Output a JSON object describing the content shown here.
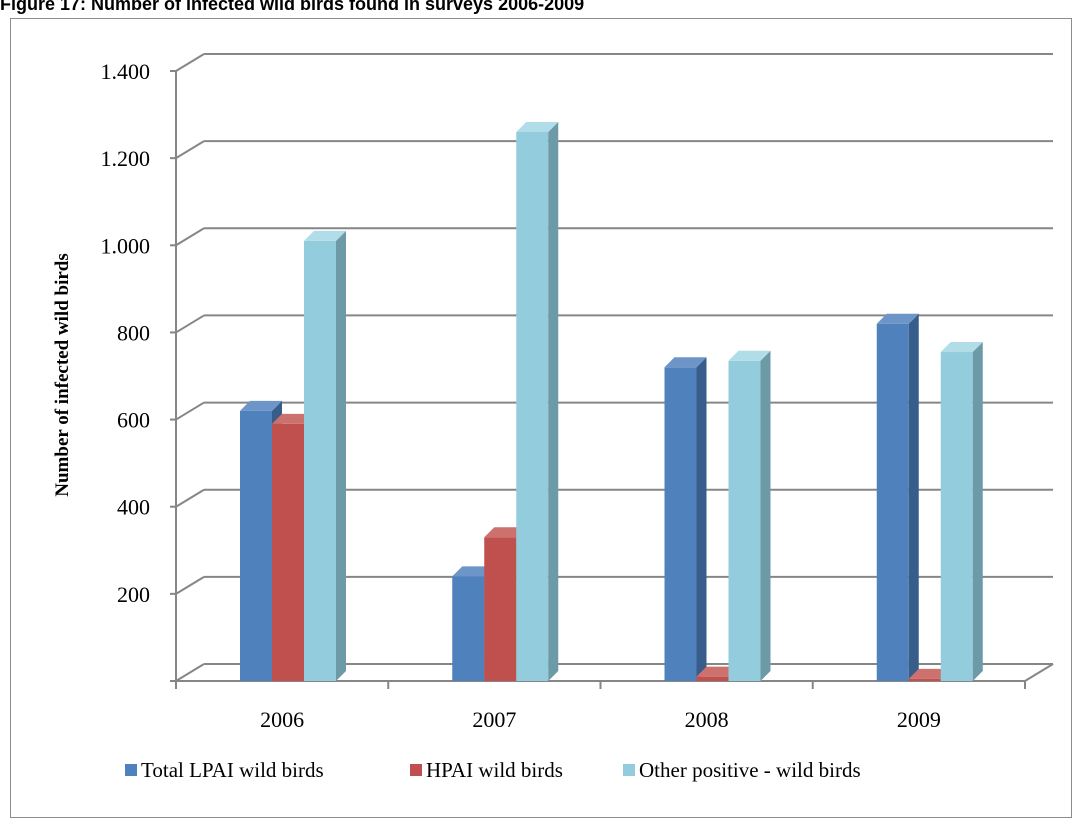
{
  "figure_title": "Figure 17: Number of infected wild birds found in surveys 2006-2009",
  "chart_data": {
    "type": "bar",
    "title": "",
    "xlabel": "",
    "ylabel": "Number of infected wild birds",
    "categories": [
      "2006",
      "2007",
      "2008",
      "2009"
    ],
    "ylim": [
      0,
      1400
    ],
    "ytick_values": [
      200,
      400,
      600,
      800,
      1000,
      1200,
      1400
    ],
    "ytick_labels": [
      "200",
      "400",
      "600",
      "800",
      "1.000",
      "1.200",
      "1.400"
    ],
    "grid": true,
    "legend_position": "bottom",
    "series": [
      {
        "name": "Total LPAI wild birds",
        "values": [
          620,
          240,
          720,
          820
        ],
        "color": "#4f81bd",
        "side_color": "#385d8a",
        "top_color": "#6d95c8"
      },
      {
        "name": "HPAI wild birds",
        "values": [
          590,
          330,
          10,
          5
        ],
        "color": "#c0504d",
        "side_color": "#8c3836",
        "top_color": "#cd716e"
      },
      {
        "name": "Other positive - wild birds",
        "values": [
          1010,
          1260,
          735,
          755
        ],
        "color": "#93cddd",
        "side_color": "#6c9aa6",
        "top_color": "#b1dde8"
      }
    ]
  }
}
